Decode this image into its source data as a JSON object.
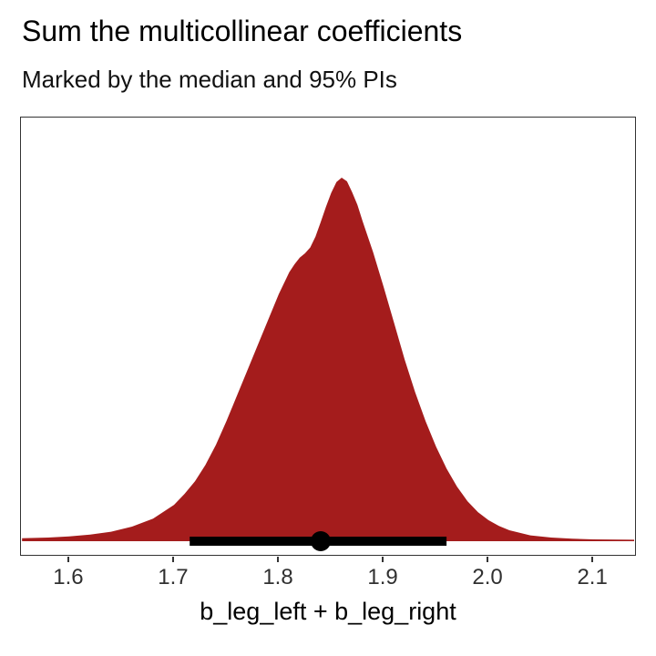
{
  "chart_data": {
    "type": "area",
    "title": "Sum the multicollinear coefficients",
    "subtitle": "Marked by the median and 95% PIs",
    "xlabel": "b_leg_left + b_leg_right",
    "ylabel": "",
    "xlim": [
      1.554,
      2.139
    ],
    "x_ticks": [
      1.6,
      1.7,
      1.8,
      1.9,
      2.0,
      2.1
    ],
    "grid": false,
    "legend": false,
    "fill_color": "#A41C1C",
    "interval": {
      "type": "95% PI",
      "lower": 1.715,
      "median": 1.84,
      "upper": 1.96,
      "color": "#000000"
    },
    "density": {
      "x": [
        1.555,
        1.58,
        1.6,
        1.62,
        1.64,
        1.66,
        1.68,
        1.7,
        1.71,
        1.72,
        1.73,
        1.74,
        1.75,
        1.76,
        1.77,
        1.78,
        1.79,
        1.8,
        1.81,
        1.815,
        1.82,
        1.825,
        1.83,
        1.835,
        1.84,
        1.845,
        1.85,
        1.855,
        1.86,
        1.865,
        1.87,
        1.875,
        1.88,
        1.89,
        1.9,
        1.91,
        1.92,
        1.93,
        1.94,
        1.95,
        1.96,
        1.97,
        1.98,
        1.99,
        2.0,
        2.01,
        2.02,
        2.04,
        2.06,
        2.08,
        2.1,
        2.139
      ],
      "y": [
        0.008,
        0.01,
        0.013,
        0.018,
        0.026,
        0.04,
        0.062,
        0.1,
        0.13,
        0.165,
        0.21,
        0.265,
        0.33,
        0.4,
        0.47,
        0.54,
        0.61,
        0.68,
        0.74,
        0.762,
        0.78,
        0.792,
        0.808,
        0.838,
        0.878,
        0.92,
        0.958,
        0.988,
        1.0,
        0.99,
        0.96,
        0.925,
        0.88,
        0.795,
        0.7,
        0.6,
        0.5,
        0.41,
        0.33,
        0.26,
        0.2,
        0.15,
        0.11,
        0.08,
        0.058,
        0.042,
        0.03,
        0.016,
        0.01,
        0.007,
        0.005,
        0.004
      ]
    }
  }
}
